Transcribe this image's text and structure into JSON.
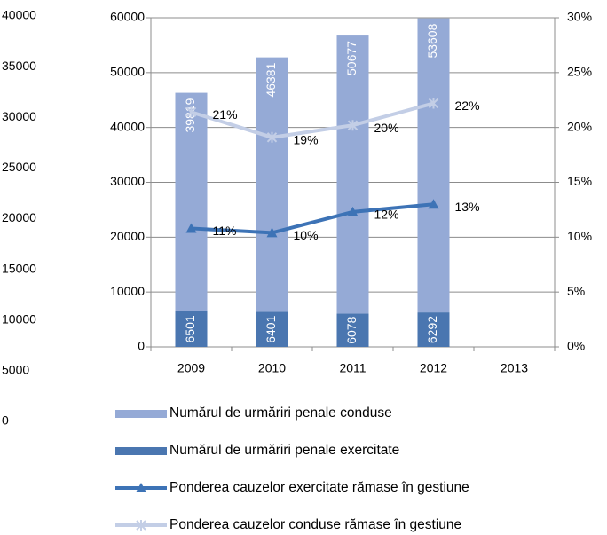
{
  "chart_data": {
    "type": "bar",
    "categories": [
      "2009",
      "2010",
      "2011",
      "2012",
      "2013"
    ],
    "series": [
      {
        "name": "Numărul de urmăriri penale conduse",
        "type": "bar",
        "color": "#95aad6",
        "values": [
          39819,
          46381,
          50677,
          53608,
          null
        ]
      },
      {
        "name": "Numărul de urmăriri penale exercitate",
        "type": "bar",
        "color": "#4a76b0",
        "values": [
          6501,
          6401,
          6078,
          6292,
          null
        ]
      },
      {
        "name": "Ponderea cauzelor exercitate rămase în gestiune",
        "type": "line",
        "axis": "y2",
        "marker": "triangle",
        "color": "#3d73b6",
        "values": [
          10.8,
          10.4,
          12.3,
          13.0,
          null
        ],
        "value_labels": [
          "11%",
          "10%",
          "12%",
          "13%",
          null
        ]
      },
      {
        "name": "Ponderea cauzelor conduse rămase în gestiune",
        "type": "line",
        "axis": "y2",
        "marker": "star",
        "color": "#c3cee6",
        "values": [
          21.4,
          19.1,
          20.2,
          22.2,
          null
        ],
        "value_labels": [
          "21%",
          "19%",
          "20%",
          "22%",
          null
        ]
      }
    ],
    "ylim": [
      0,
      60000
    ],
    "yticks": [
      0,
      10000,
      20000,
      30000,
      40000,
      50000,
      60000
    ],
    "y2lim": [
      0,
      30
    ],
    "y2ticks": [
      {
        "value": 0,
        "label": "0%"
      },
      {
        "value": 5,
        "label": "5%"
      },
      {
        "value": 10,
        "label": "10%"
      },
      {
        "value": 15,
        "label": "15%"
      },
      {
        "value": 20,
        "label": "20%"
      },
      {
        "value": 25,
        "label": "25%"
      },
      {
        "value": 30,
        "label": "30%"
      }
    ],
    "y3lim": [
      0,
      40000
    ],
    "y3ticks": [
      0,
      5000,
      10000,
      15000,
      20000,
      25000,
      30000,
      35000,
      40000
    ],
    "grid": true,
    "legend": "bottom"
  }
}
